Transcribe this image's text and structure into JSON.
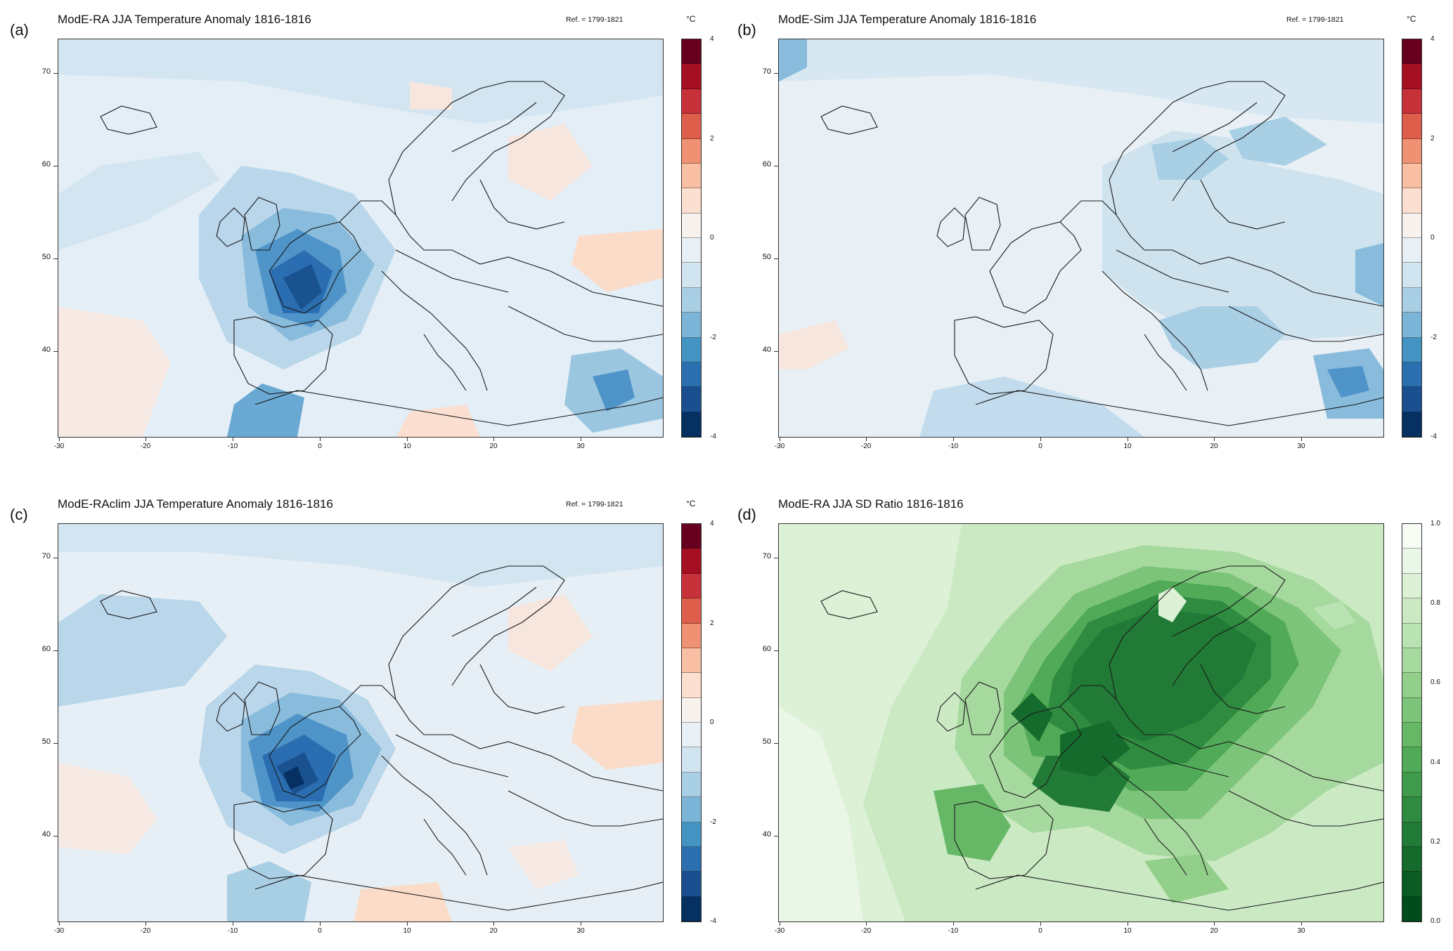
{
  "panels": [
    {
      "id": "a",
      "letter": "(a)",
      "title": "ModE-RA JJA Temperature Anomaly 1816-1816",
      "ref": "Ref. = 1799-1821",
      "unit": "°C",
      "scale": "anomaly"
    },
    {
      "id": "b",
      "letter": "(b)",
      "title": "ModE-Sim JJA Temperature Anomaly 1816-1816",
      "ref": "Ref. = 1799-1821",
      "unit": "°C",
      "scale": "anomaly"
    },
    {
      "id": "c",
      "letter": "(c)",
      "title": "ModE-RAclim JJA Temperature Anomaly 1816-1816",
      "ref": "Ref. = 1799-1821",
      "unit": "°C",
      "scale": "anomaly"
    },
    {
      "id": "d",
      "letter": "(d)",
      "title": "ModE-RA JJA SD Ratio 1816-1816",
      "ref": "",
      "unit": "",
      "scale": "ratio"
    }
  ],
  "axes": {
    "lat_ticks": [
      "70",
      "60",
      "50",
      "40"
    ],
    "lon_ticks": [
      "-30",
      "-20",
      "-10",
      "0",
      "10",
      "20",
      "30"
    ]
  },
  "colorbars": {
    "anomaly": {
      "labels": [
        "4",
        "2",
        "0",
        "-2",
        "-4"
      ],
      "colors": [
        "#67001f",
        "#a50f22",
        "#c7313a",
        "#dd5f4b",
        "#ee9273",
        "#f8bfa5",
        "#fbe0d1",
        "#f7f2ee",
        "#e8f0f5",
        "#d1e5f0",
        "#a9cfe5",
        "#7bb6d8",
        "#4393c3",
        "#2c6fb1",
        "#1a4f8f",
        "#053061"
      ]
    },
    "ratio": {
      "labels": [
        "1.0",
        "0.8",
        "0.6",
        "0.4",
        "0.2",
        "0.0"
      ],
      "colors": [
        "#f7fcf5",
        "#eaf6e6",
        "#dcf1d6",
        "#cbeac4",
        "#b9e3b2",
        "#a6d99e",
        "#92cf8b",
        "#7cc479",
        "#66b867",
        "#51aa58",
        "#3f9b4b",
        "#2f8b40",
        "#217b36",
        "#156b2c",
        "#0b5c24",
        "#004c1c"
      ]
    }
  },
  "colors": {
    "frame": "#333333",
    "coast": "#1a1a1a"
  }
}
